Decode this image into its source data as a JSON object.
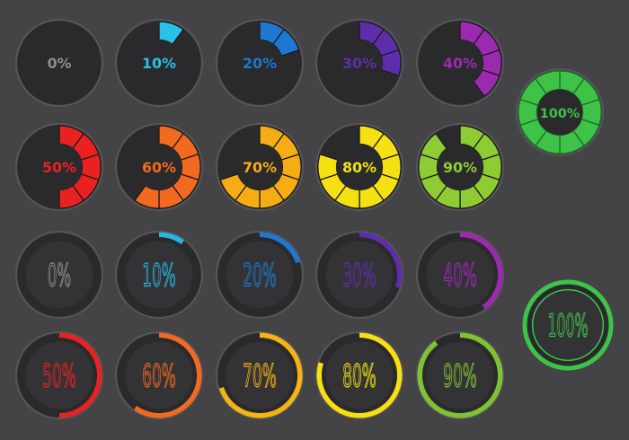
{
  "segmented_gauges": {
    "rows": [
      [
        {
          "label": "0%",
          "value": 0,
          "color": "#8e8e8e"
        },
        {
          "label": "10%",
          "value": 10,
          "color": "#29c1e8"
        },
        {
          "label": "20%",
          "value": 20,
          "color": "#1e78d2"
        },
        {
          "label": "30%",
          "value": 30,
          "color": "#5e2dab"
        },
        {
          "label": "40%",
          "value": 40,
          "color": "#9b2ab0"
        }
      ],
      [
        {
          "label": "50%",
          "value": 50,
          "color": "#ea2121"
        },
        {
          "label": "60%",
          "value": 60,
          "color": "#f26a1f"
        },
        {
          "label": "70%",
          "value": 70,
          "color": "#f6ac14"
        },
        {
          "label": "80%",
          "value": 80,
          "color": "#f5e012"
        },
        {
          "label": "90%",
          "value": 90,
          "color": "#8fcc33"
        }
      ]
    ],
    "complete": {
      "label": "100%",
      "value": 100,
      "color": "#3fc248"
    }
  },
  "thin_gauges": {
    "rows": [
      [
        {
          "label": "0%",
          "value": 0,
          "color": "#8e8e8e"
        },
        {
          "label": "10%",
          "value": 10,
          "color": "#29b5e0"
        },
        {
          "label": "20%",
          "value": 20,
          "color": "#1e78d2"
        },
        {
          "label": "30%",
          "value": 30,
          "color": "#5e2dab"
        },
        {
          "label": "40%",
          "value": 40,
          "color": "#9b2ab0"
        }
      ],
      [
        {
          "label": "50%",
          "value": 50,
          "color": "#ea2121"
        },
        {
          "label": "60%",
          "value": 60,
          "color": "#f26a1f"
        },
        {
          "label": "70%",
          "value": 70,
          "color": "#f6b414"
        },
        {
          "label": "80%",
          "value": 80,
          "color": "#f5e012"
        },
        {
          "label": "90%",
          "value": 90,
          "color": "#7fc234"
        }
      ]
    ],
    "complete": {
      "label": "100%",
      "value": 100,
      "color": "#3fc248"
    }
  }
}
